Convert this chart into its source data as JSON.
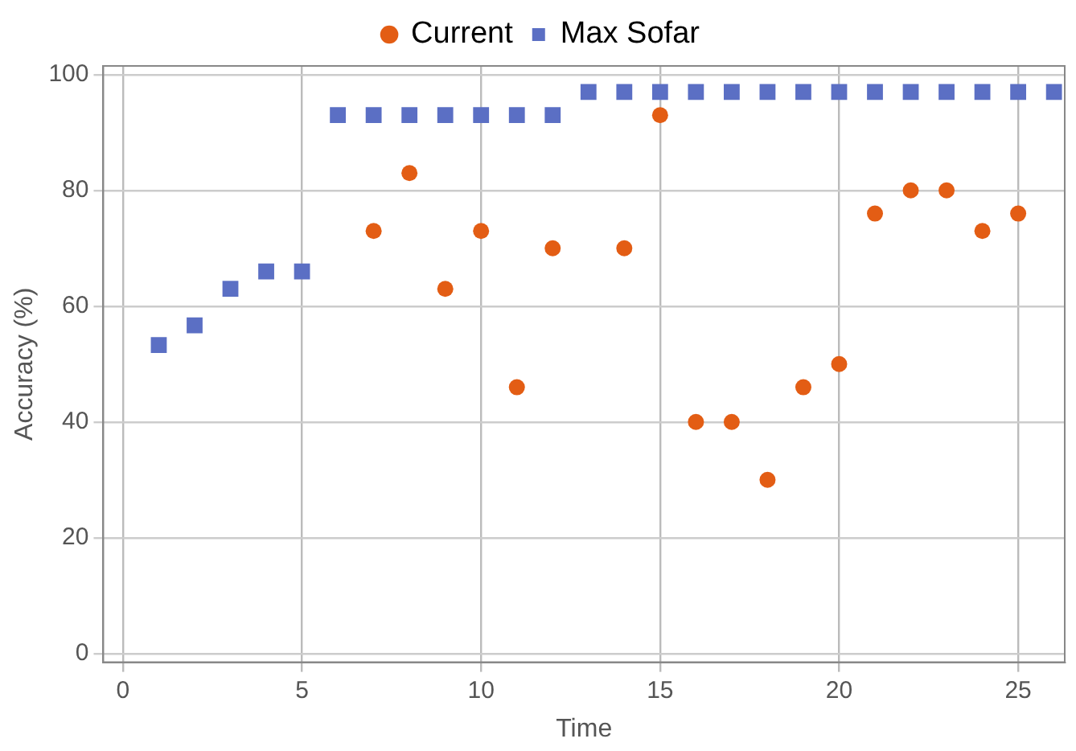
{
  "chart_data": {
    "type": "scatter",
    "xlabel": "Time",
    "ylabel": "Accuracy (%)",
    "xlim": [
      -0.55,
      26.3
    ],
    "ylim": [
      -1.5,
      101.5
    ],
    "xticks": [
      0,
      5,
      10,
      15,
      20,
      25
    ],
    "yticks": [
      0,
      20,
      40,
      60,
      80,
      100
    ],
    "grid": true,
    "legend": "top",
    "series": [
      {
        "name": "Current",
        "color": "#e35d14",
        "marker": "circle",
        "x": [
          7,
          8,
          9,
          10,
          11,
          12,
          14,
          15,
          16,
          17,
          18,
          19,
          20,
          21,
          22,
          23,
          24,
          25
        ],
        "values": [
          73,
          83,
          63,
          73,
          46,
          70,
          70,
          93,
          40,
          40,
          30,
          46,
          50,
          76,
          80,
          80,
          73,
          76
        ]
      },
      {
        "name": "Max Sofar",
        "color": "#5b6fc4",
        "marker": "square",
        "x": [
          1,
          2,
          3,
          4,
          5,
          6,
          7,
          8,
          9,
          10,
          11,
          12,
          13,
          14,
          15,
          16,
          17,
          18,
          19,
          20,
          21,
          22,
          23,
          24,
          25,
          26
        ],
        "values": [
          53.3,
          56.7,
          63,
          66,
          66,
          93,
          93,
          93,
          93,
          93,
          93,
          93,
          97,
          97,
          97,
          97,
          97,
          97,
          97,
          97,
          97,
          97,
          97,
          97,
          97,
          97
        ]
      }
    ]
  }
}
